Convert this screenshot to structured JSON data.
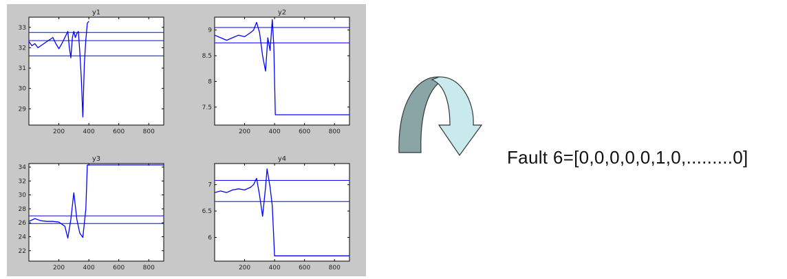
{
  "colors": {
    "figure_bg": "#c8c8c8",
    "axes_bg": "#ffffff",
    "trace": "#0000ff",
    "arrow_dark": "#8aa5a5",
    "arrow_light": "#c9eaec",
    "arrow_outline": "#333333"
  },
  "arrow": {
    "icon": "curved-arrow-icon"
  },
  "fault_label": "Fault 6=[0,0,0,0,0,1,0,.........0]",
  "chart_data": [
    {
      "type": "line",
      "title": "y1",
      "xlabel": "",
      "ylabel": "",
      "xlim": [
        0,
        900
      ],
      "ylim": [
        28.2,
        33.5
      ],
      "xticks": [
        200,
        400,
        600,
        800
      ],
      "xtick_labels": [
        "200",
        "400",
        "600",
        "800"
      ],
      "yticks": [
        29,
        30,
        31,
        32,
        33
      ],
      "ytick_labels": [
        "29",
        "30",
        "31",
        "32",
        "33"
      ],
      "thresholds": [
        32.75,
        32.35,
        31.6
      ],
      "series": [
        {
          "x": [
            0,
            20,
            40,
            60,
            80,
            100,
            120,
            140,
            160,
            180,
            200,
            220,
            240,
            260,
            270,
            280,
            290,
            300,
            310,
            320,
            330,
            340,
            350,
            360,
            370,
            380,
            390,
            400
          ],
          "y": [
            32.3,
            32.1,
            32.2,
            32.0,
            32.1,
            32.2,
            32.3,
            32.4,
            32.5,
            32.2,
            31.95,
            32.2,
            32.5,
            32.8,
            32.0,
            31.5,
            32.5,
            32.8,
            32.5,
            32.7,
            32.8,
            31.8,
            30.5,
            28.6,
            31.2,
            32.4,
            33.2,
            33.3
          ]
        }
      ]
    },
    {
      "type": "line",
      "title": "y2",
      "xlabel": "",
      "ylabel": "",
      "xlim": [
        0,
        900
      ],
      "ylim": [
        7.15,
        9.25
      ],
      "xticks": [
        200,
        400,
        600,
        800
      ],
      "xtick_labels": [
        "200",
        "400",
        "600",
        "800"
      ],
      "yticks": [
        7.5,
        8,
        8.5,
        9
      ],
      "ytick_labels": [
        "7.5",
        "8",
        "8.5",
        "9"
      ],
      "thresholds": [
        9.05,
        8.75
      ],
      "series": [
        {
          "x": [
            0,
            40,
            80,
            120,
            160,
            200,
            240,
            260,
            280,
            300,
            320,
            340,
            355,
            370,
            385,
            395,
            405,
            900
          ],
          "y": [
            8.9,
            8.85,
            8.8,
            8.85,
            8.9,
            8.87,
            8.95,
            9.0,
            9.15,
            8.95,
            8.5,
            8.2,
            8.85,
            8.6,
            9.2,
            8.7,
            7.35,
            7.35
          ]
        }
      ]
    },
    {
      "type": "line",
      "title": "y3",
      "xlabel": "",
      "ylabel": "",
      "xlim": [
        0,
        900
      ],
      "ylim": [
        20.5,
        34.5
      ],
      "xticks": [
        200,
        400,
        600,
        800
      ],
      "xtick_labels": [
        "200",
        "400",
        "600",
        "800"
      ],
      "yticks": [
        22,
        24,
        26,
        28,
        30,
        32,
        34
      ],
      "ytick_labels": [
        "22",
        "24",
        "26",
        "28",
        "30",
        "32",
        "34"
      ],
      "thresholds": [
        27.0,
        25.9
      ],
      "series": [
        {
          "x": [
            0,
            40,
            80,
            120,
            160,
            200,
            240,
            260,
            280,
            300,
            320,
            340,
            360,
            380,
            390,
            400,
            900
          ],
          "y": [
            26.2,
            26.6,
            26.3,
            26.2,
            26.2,
            26.1,
            25.5,
            23.8,
            26.5,
            30.3,
            26.5,
            24.5,
            23.9,
            28.0,
            34.3,
            34.3,
            34.3
          ]
        }
      ]
    },
    {
      "type": "line",
      "title": "y4",
      "xlabel": "",
      "ylabel": "",
      "xlim": [
        0,
        900
      ],
      "ylim": [
        5.55,
        7.4
      ],
      "xticks": [
        200,
        400,
        600,
        800
      ],
      "xtick_labels": [
        "200",
        "400",
        "600",
        "800"
      ],
      "yticks": [
        6,
        6.5,
        7
      ],
      "ytick_labels": [
        "6",
        "6.5",
        "7"
      ],
      "thresholds": [
        7.08,
        6.68
      ],
      "series": [
        {
          "x": [
            0,
            40,
            80,
            120,
            160,
            200,
            240,
            260,
            280,
            300,
            320,
            340,
            350,
            370,
            385,
            400,
            900
          ],
          "y": [
            6.85,
            6.88,
            6.85,
            6.9,
            6.92,
            6.9,
            6.95,
            7.0,
            7.12,
            6.8,
            6.4,
            6.95,
            7.3,
            6.95,
            6.6,
            5.65,
            5.65
          ]
        }
      ]
    }
  ]
}
